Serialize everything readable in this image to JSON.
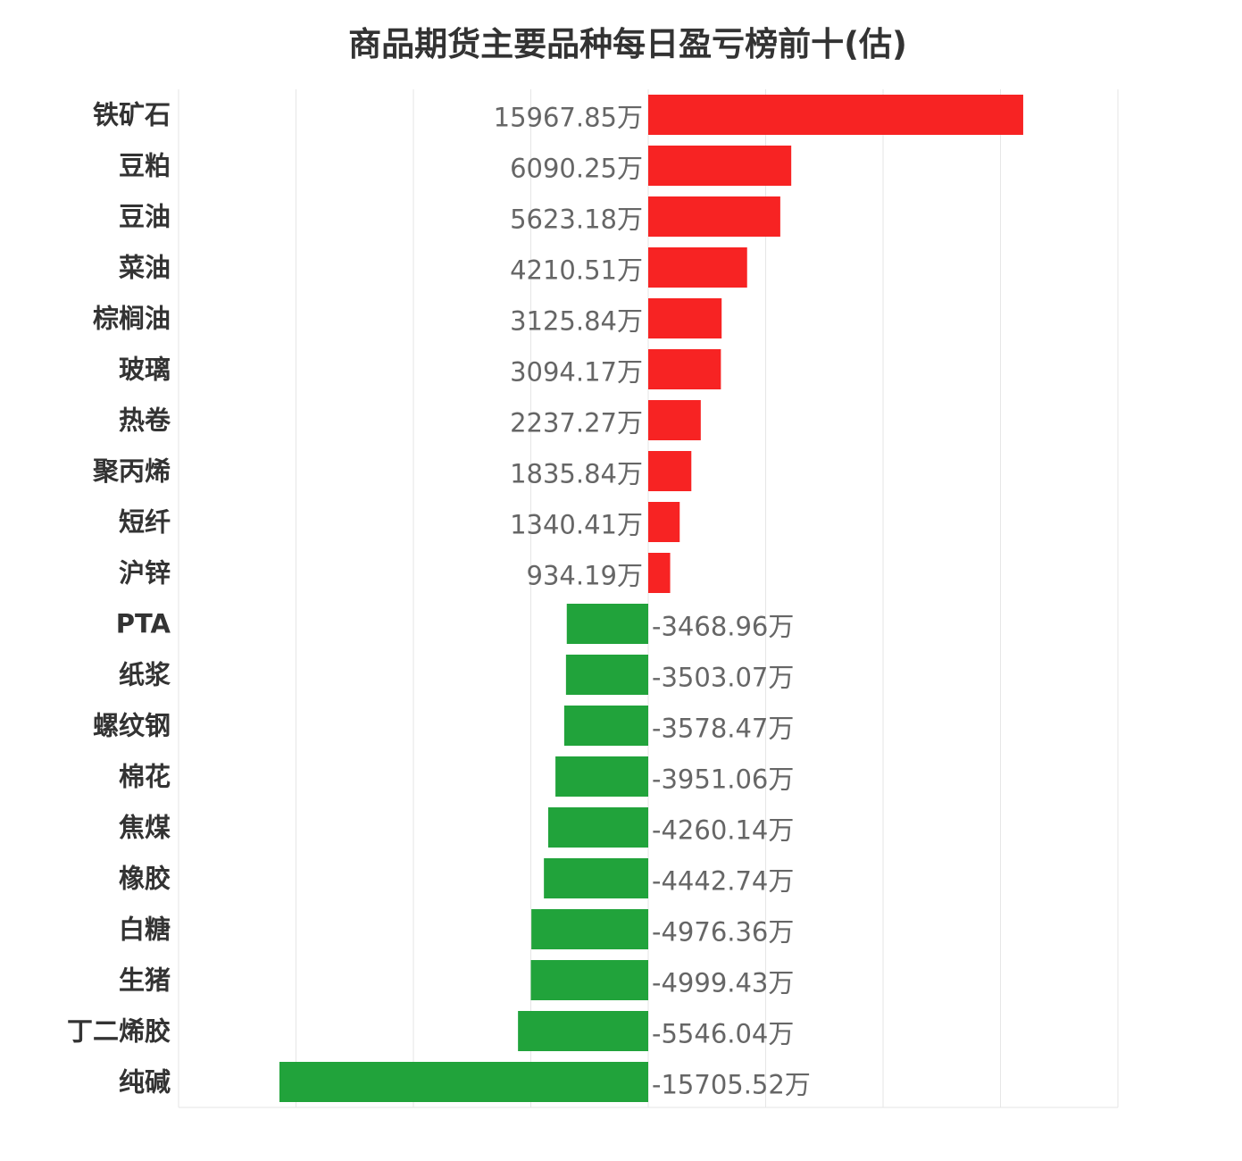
{
  "chart_data": {
    "type": "bar",
    "orientation": "horizontal",
    "title": "商品期货主要品种每日盈亏榜前十(估)",
    "unit_suffix": "万",
    "xlim": [
      -20000,
      20000
    ],
    "x_grid_step": 5000,
    "grid": true,
    "colors": {
      "positive": "#f72323",
      "negative": "#21a33b",
      "grid": "#e6e6e6"
    },
    "categories": [
      "铁矿石",
      "豆粕",
      "豆油",
      "菜油",
      "棕榈油",
      "玻璃",
      "热卷",
      "聚丙烯",
      "短纤",
      "沪锌",
      "PTA",
      "纸浆",
      "螺纹钢",
      "棉花",
      "焦煤",
      "橡胶",
      "白糖",
      "生猪",
      "丁二烯胶",
      "纯碱"
    ],
    "values": [
      15967.85,
      6090.25,
      5623.18,
      4210.51,
      3125.84,
      3094.17,
      2237.27,
      1835.84,
      1340.41,
      934.19,
      -3468.96,
      -3503.07,
      -3578.47,
      -3951.06,
      -4260.14,
      -4442.74,
      -4976.36,
      -4999.43,
      -5546.04,
      -15705.52
    ],
    "labels": [
      "15967.85万",
      "6090.25万",
      "5623.18万",
      "4210.51万",
      "3125.84万",
      "3094.17万",
      "2237.27万",
      "1835.84万",
      "1340.41万",
      "934.19万",
      "-3468.96万",
      "-3503.07万",
      "-3578.47万",
      "-3951.06万",
      "-4260.14万",
      "-4442.74万",
      "-4976.36万",
      "-4999.43万",
      "-5546.04万",
      "-15705.52万"
    ]
  }
}
